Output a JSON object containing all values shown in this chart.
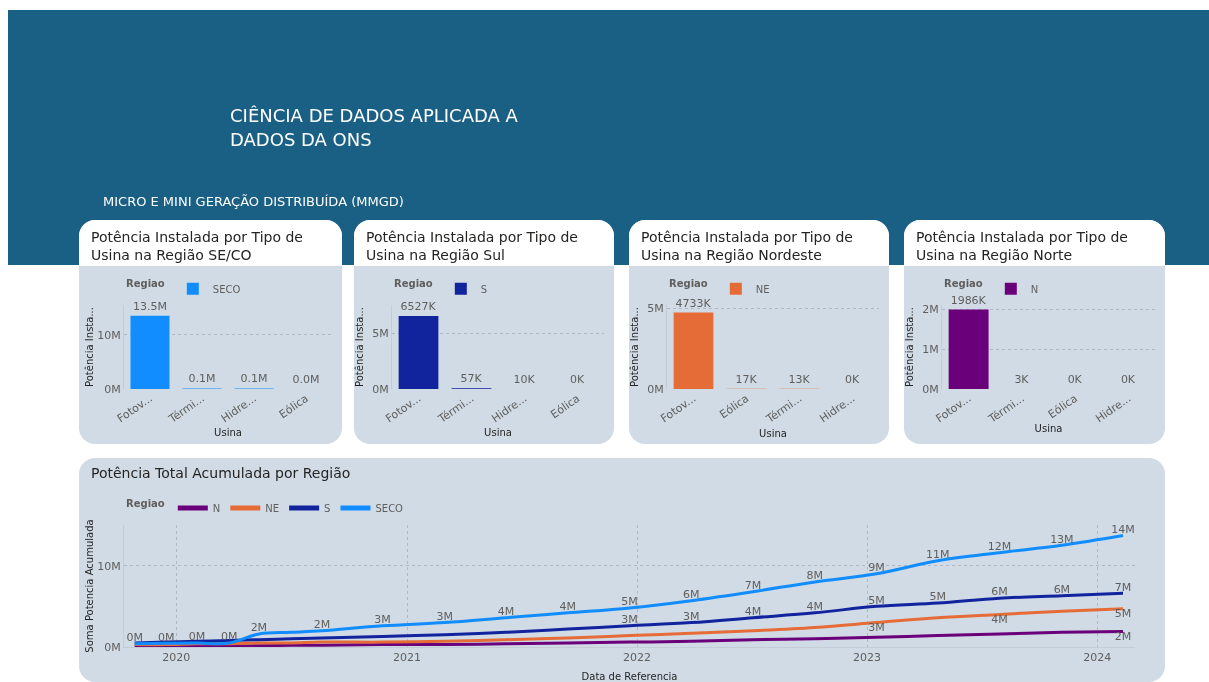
{
  "chart_data": [
    {
      "type": "other",
      "title": "CIÊNCIA DE DADOS APLICADA A DADOS DA ONS",
      "subtitle": "MICRO E MINI GERAÇÃO DISTRIBUÍDA (MMGD)"
    },
    {
      "type": "bar",
      "title": "Potência Instalada por Tipo de Usina na Região SE/CO",
      "legend_title": "Regiao",
      "legend": "top left",
      "ylabel": "Potência Insta...",
      "xlabel": "Usina",
      "categories": [
        "Fotov...",
        "Térmi...",
        "Hidre...",
        "Eólica"
      ],
      "series": [
        {
          "name": "SECO",
          "color": "#118dff",
          "values": [
            13500000,
            100000,
            100000,
            0
          ],
          "value_labels": [
            "13.5M",
            "0.1M",
            "0.1M",
            "0.0M"
          ]
        }
      ],
      "ylim": [
        0,
        15500000
      ],
      "yticks": [
        {
          "value": 0,
          "label": "0M"
        },
        {
          "value": 10000000,
          "label": "10M"
        }
      ],
      "grid": "y"
    },
    {
      "type": "bar",
      "title": "Potência Instalada por Tipo de Usina na Região Sul",
      "legend_title": "Regiao",
      "legend": "top left",
      "ylabel": "Potência Insta...",
      "xlabel": "Usina",
      "categories": [
        "Fotov...",
        "Térmi...",
        "Hidre...",
        "Eólica"
      ],
      "series": [
        {
          "name": "S",
          "color": "#12239e",
          "values": [
            6527000,
            57000,
            10000,
            0
          ],
          "value_labels": [
            "6527K",
            "57K",
            "10K",
            "0K"
          ]
        }
      ],
      "ylim": [
        0,
        7500000
      ],
      "yticks": [
        {
          "value": 0,
          "label": "0M"
        },
        {
          "value": 5000000,
          "label": "5M"
        }
      ],
      "grid": "y"
    },
    {
      "type": "bar",
      "title": "Potência Instalada por Tipo de Usina na Região Nordeste",
      "legend_title": "Regiao",
      "legend": "top left",
      "ylabel": "Potência Insta...",
      "xlabel": "Usina",
      "categories": [
        "Fotov...",
        "Eólica",
        "Térmi...",
        "Hidre..."
      ],
      "series": [
        {
          "name": "NE",
          "color": "#e66c37",
          "values": [
            4733000,
            17000,
            13000,
            0
          ],
          "value_labels": [
            "4733K",
            "17K",
            "13K",
            "0K"
          ]
        }
      ],
      "ylim": [
        0,
        5200000
      ],
      "yticks": [
        {
          "value": 0,
          "label": "0M"
        },
        {
          "value": 5000000,
          "label": "5M"
        }
      ],
      "grid": "y"
    },
    {
      "type": "bar",
      "title": "Potência Instalada por Tipo de Usina na Região Norte",
      "legend_title": "Regiao",
      "legend": "top left",
      "ylabel": "Potência Insta...",
      "xlabel": "Usina",
      "categories": [
        "Fotov...",
        "Térmi...",
        "Eólica",
        "Hidre..."
      ],
      "series": [
        {
          "name": "N",
          "color": "#6b007b",
          "values": [
            1986000,
            3000,
            0,
            0
          ],
          "value_labels": [
            "1986K",
            "3K",
            "0K",
            "0K"
          ]
        }
      ],
      "ylim": [
        0,
        2100000
      ],
      "yticks": [
        {
          "value": 0,
          "label": "0M"
        },
        {
          "value": 1000000,
          "label": "1M"
        },
        {
          "value": 2000000,
          "label": "2M"
        }
      ],
      "grid": "y"
    },
    {
      "type": "line",
      "title": "Potência Total Acumulada por Região",
      "legend_title": "Regiao",
      "legend": "top left",
      "ylabel": "Soma Potencia Acumulada",
      "xlabel": "Data de Referencia",
      "x": [
        "2019-10-27",
        "2019-12-16",
        "2020-02-03",
        "2020-03-25",
        "2020-05-11",
        "2020-07-01",
        "2020-08-19",
        "2020-11-23",
        "2021-03-02",
        "2021-06-07",
        "2021-09-13",
        "2021-12-20",
        "2022-03-28",
        "2022-07-04",
        "2022-10-10",
        "2023-01-16",
        "2023-04-23",
        "2023-07-30",
        "2023-11-06",
        "2024-02-11"
      ],
      "series": [
        {
          "name": "N",
          "color": "#6b007b",
          "values": [
            50000,
            70000,
            100000,
            120000,
            150000,
            200000,
            200000,
            300000,
            300000,
            400000,
            500000,
            600000,
            700000,
            900000,
            1000000,
            1200000,
            1400000,
            1600000,
            1800000,
            1900000
          ],
          "value_labels": [
            null,
            null,
            null,
            null,
            null,
            null,
            null,
            null,
            null,
            null,
            null,
            null,
            null,
            null,
            null,
            null,
            null,
            null,
            null,
            "2M"
          ]
        },
        {
          "name": "NE",
          "color": "#e66c37",
          "values": [
            300000,
            300000,
            400000,
            400000,
            500000,
            500000,
            600000,
            600000,
            700000,
            900000,
            1100000,
            1400000,
            1700000,
            2000000,
            2400000,
            3000000,
            3600000,
            4000000,
            4400000,
            4700000
          ],
          "value_labels": [
            null,
            null,
            null,
            null,
            null,
            null,
            null,
            null,
            null,
            null,
            null,
            null,
            null,
            null,
            null,
            "3M",
            null,
            "4M",
            null,
            "5M"
          ]
        },
        {
          "name": "S",
          "color": "#12239e",
          "values": [
            500000,
            600000,
            700000,
            800000,
            900000,
            1000000,
            1100000,
            1300000,
            1500000,
            1800000,
            2200000,
            2600000,
            3000000,
            3600000,
            4200000,
            5000000,
            5400000,
            6000000,
            6300000,
            6600000
          ],
          "value_labels": [
            null,
            null,
            null,
            null,
            null,
            null,
            null,
            null,
            null,
            null,
            null,
            "3M",
            "3M",
            "4M",
            "4M",
            "5M",
            "5M",
            "6M",
            "6M",
            "7M"
          ]
        },
        {
          "name": "SECO",
          "color": "#118dff",
          "values": [
            400000,
            450000,
            480000,
            490000,
            1600000,
            1800000,
            2000000,
            2600000,
            3000000,
            3600000,
            4200000,
            4800000,
            5700000,
            6800000,
            8000000,
            9000000,
            10600000,
            11600000,
            12500000,
            13700000
          ],
          "value_labels": [
            "0M",
            "0M",
            "0M",
            "0M",
            "2M",
            null,
            "2M",
            "3M",
            "3M",
            "4M",
            "4M",
            "5M",
            "6M",
            "7M",
            "8M",
            "9M",
            "11M",
            "12M",
            "13M",
            "14M"
          ]
        }
      ],
      "xlim": [
        "2019-10-10",
        "2024-03-01"
      ],
      "xticks": [
        {
          "value": "2020-01-01",
          "label": "2020"
        },
        {
          "value": "2021-01-01",
          "label": "2021"
        },
        {
          "value": "2022-01-01",
          "label": "2022"
        },
        {
          "value": "2023-01-01",
          "label": "2023"
        },
        {
          "value": "2024-01-01",
          "label": "2024"
        }
      ],
      "ylim": [
        0,
        15000000
      ],
      "yticks": [
        {
          "value": 0,
          "label": "0M"
        },
        {
          "value": 10000000,
          "label": "10M"
        }
      ],
      "grid": true
    }
  ]
}
